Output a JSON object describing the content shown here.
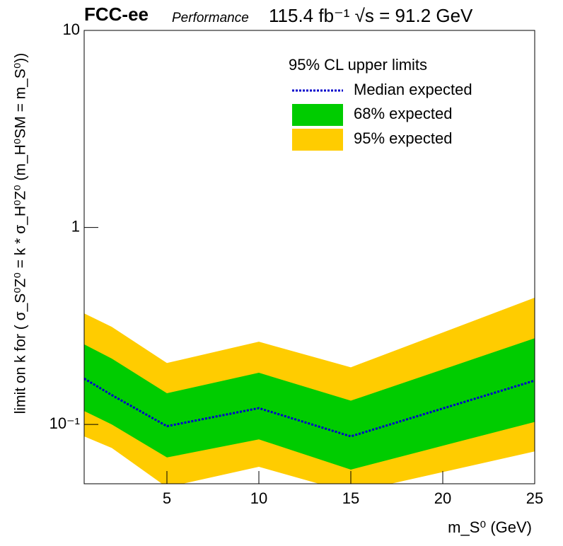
{
  "chart_data": {
    "type": "line",
    "title": "FCC-ee",
    "subtitle": "Performance",
    "annotation": "115.4 fb⁻¹ √s = 91.2 GeV",
    "x_label": "m_S⁰ (GeV)",
    "y_label": "limit on k for ( σ_S⁰Z⁰ = k * σ_H⁰Z⁰ (m_H⁰SM = m_S⁰))",
    "legend_title": "95% CL upper limits",
    "legend_position": "upper right",
    "x": [
      0.5,
      2,
      5,
      10,
      15,
      25
    ],
    "series": [
      {
        "name": "Median expected",
        "color": "#0000cc",
        "values": [
          0.171,
          0.141,
          0.098,
          0.121,
          0.087,
          0.167
        ]
      },
      {
        "name": "68% expected",
        "color": "#00cc00",
        "low": [
          0.117,
          0.1,
          0.068,
          0.084,
          0.059,
          0.103
        ],
        "high": [
          0.255,
          0.216,
          0.144,
          0.183,
          0.132,
          0.274
        ]
      },
      {
        "name": "95% expected",
        "color": "#ffcc00",
        "low": [
          0.087,
          0.076,
          0.048,
          0.061,
          0.045,
          0.073
        ],
        "high": [
          0.366,
          0.313,
          0.205,
          0.263,
          0.195,
          0.44
        ]
      }
    ],
    "xlim": [
      0.5,
      25
    ],
    "xticks": [
      5,
      10,
      15,
      20,
      25
    ],
    "ylim": [
      0.05,
      10
    ],
    "yticks": [
      {
        "value": 0.1,
        "label": "10⁻¹"
      },
      1,
      10
    ],
    "y_log": true
  }
}
